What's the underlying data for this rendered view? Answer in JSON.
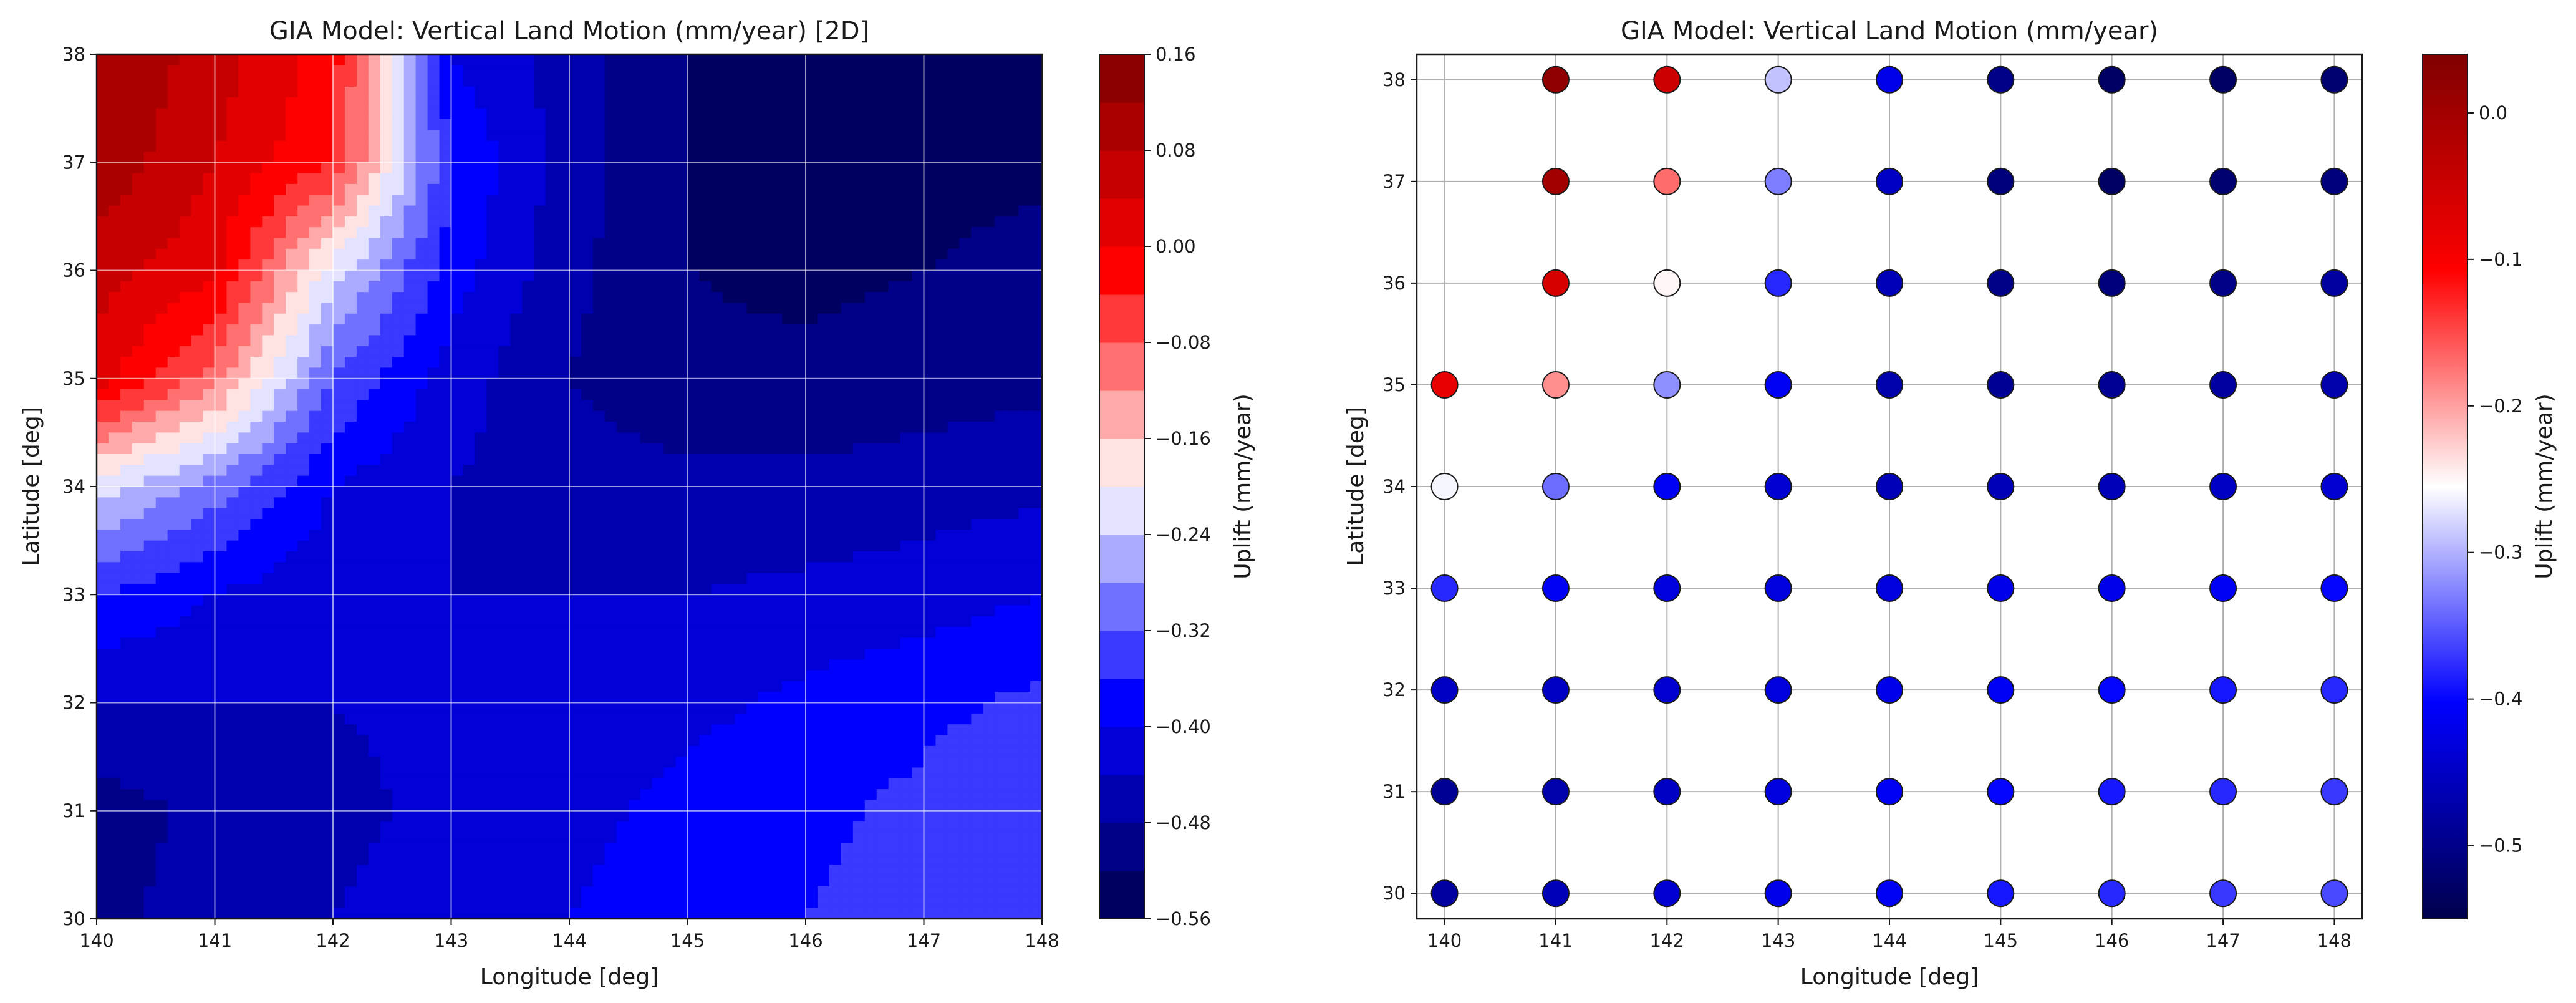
{
  "chart_data": [
    {
      "type": "heatmap",
      "subtype": "filled-contour",
      "title": "GIA Model: Vertical Land Motion (mm/year) [2D]",
      "xlabel": "Longitude [deg]",
      "ylabel": "Latitude [deg]",
      "xlim": [
        140,
        148
      ],
      "ylim": [
        30,
        38
      ],
      "xticks": [
        "140",
        "141",
        "142",
        "143",
        "144",
        "145",
        "146",
        "147",
        "148"
      ],
      "yticks": [
        "30",
        "31",
        "32",
        "33",
        "34",
        "35",
        "36",
        "37",
        "38"
      ],
      "grid": true,
      "colorbar": {
        "label": "Uplift (mm/year)",
        "ticks": [
          "0.16",
          "0.08",
          "0.00",
          "−0.08",
          "−0.16",
          "−0.24",
          "−0.32",
          "−0.40",
          "−0.48",
          "−0.56"
        ],
        "min": -0.56,
        "max": 0.16,
        "levels": 18
      },
      "x": [
        140,
        141,
        142,
        143,
        144,
        145,
        146,
        147,
        148
      ],
      "y": [
        38,
        37,
        36,
        35,
        34,
        33,
        32,
        31,
        30
      ],
      "z": [
        [
          0.12,
          0.06,
          -0.02,
          -0.4,
          -0.46,
          -0.52,
          -0.54,
          -0.54,
          -0.53
        ],
        [
          0.11,
          0.04,
          -0.04,
          -0.36,
          -0.46,
          -0.52,
          -0.54,
          -0.54,
          -0.53
        ],
        [
          0.06,
          0.01,
          -0.22,
          -0.38,
          -0.47,
          -0.52,
          -0.53,
          -0.52,
          -0.5
        ],
        [
          0.02,
          -0.1,
          -0.32,
          -0.42,
          -0.48,
          -0.51,
          -0.51,
          -0.5,
          -0.49
        ],
        [
          -0.22,
          -0.3,
          -0.4,
          -0.44,
          -0.46,
          -0.47,
          -0.47,
          -0.46,
          -0.45
        ],
        [
          -0.36,
          -0.4,
          -0.43,
          -0.44,
          -0.44,
          -0.44,
          -0.43,
          -0.42,
          -0.4
        ],
        [
          -0.44,
          -0.44,
          -0.44,
          -0.43,
          -0.42,
          -0.41,
          -0.39,
          -0.37,
          -0.35
        ],
        [
          -0.5,
          -0.47,
          -0.45,
          -0.43,
          -0.41,
          -0.39,
          -0.37,
          -0.35,
          -0.33
        ],
        [
          -0.49,
          -0.46,
          -0.44,
          -0.42,
          -0.4,
          -0.38,
          -0.36,
          -0.34,
          -0.32
        ]
      ]
    },
    {
      "type": "scatter",
      "title": "GIA Model: Vertical Land Motion (mm/year)",
      "xlabel": "Longitude [deg]",
      "ylabel": "Latitude [deg]",
      "xlim": [
        139.75,
        148.25
      ],
      "ylim": [
        29.75,
        38.25
      ],
      "xticks": [
        "140",
        "141",
        "142",
        "143",
        "144",
        "145",
        "146",
        "147",
        "148"
      ],
      "yticks": [
        "30",
        "31",
        "32",
        "33",
        "34",
        "35",
        "36",
        "37",
        "38"
      ],
      "grid": true,
      "colorbar": {
        "label": "Uplift (mm/year)",
        "ticks": [
          "0.0",
          "−0.1",
          "−0.2",
          "−0.3",
          "−0.4",
          "−0.5"
        ],
        "min": -0.55,
        "max": 0.04
      },
      "x": [
        140,
        141,
        142,
        143,
        144,
        145,
        146,
        147,
        148
      ],
      "y": [
        38,
        37,
        36,
        35,
        34,
        33,
        32,
        31,
        30
      ],
      "z": [
        [
          null,
          0.02,
          -0.05,
          -0.29,
          -0.42,
          -0.5,
          -0.53,
          -0.53,
          -0.52
        ],
        [
          null,
          0.0,
          -0.17,
          -0.33,
          -0.45,
          -0.51,
          -0.53,
          -0.52,
          -0.51
        ],
        [
          null,
          -0.06,
          -0.25,
          -0.38,
          -0.46,
          -0.5,
          -0.51,
          -0.5,
          -0.48
        ],
        [
          -0.08,
          -0.19,
          -0.32,
          -0.41,
          -0.47,
          -0.49,
          -0.49,
          -0.48,
          -0.47
        ],
        [
          -0.26,
          -0.34,
          -0.41,
          -0.44,
          -0.46,
          -0.46,
          -0.46,
          -0.45,
          -0.44
        ],
        [
          -0.38,
          -0.41,
          -0.43,
          -0.43,
          -0.43,
          -0.42,
          -0.42,
          -0.41,
          -0.4
        ],
        [
          -0.45,
          -0.45,
          -0.44,
          -0.43,
          -0.42,
          -0.41,
          -0.4,
          -0.39,
          -0.38
        ],
        [
          -0.49,
          -0.47,
          -0.45,
          -0.43,
          -0.41,
          -0.4,
          -0.39,
          -0.38,
          -0.37
        ],
        [
          -0.48,
          -0.46,
          -0.44,
          -0.42,
          -0.41,
          -0.39,
          -0.38,
          -0.37,
          -0.36
        ]
      ]
    }
  ]
}
